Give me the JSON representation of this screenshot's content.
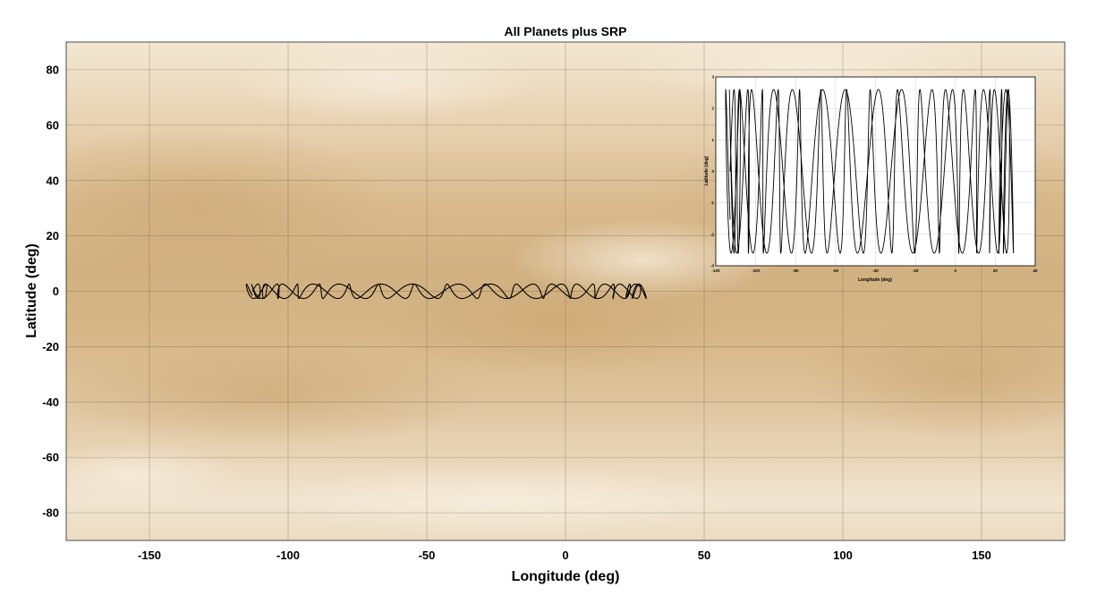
{
  "chart_data": [
    {
      "type": "line",
      "title": "All Planets plus SRP",
      "xlabel": "Longitude (deg)",
      "ylabel": "Latitude (deg)",
      "xlim": [
        -180,
        180
      ],
      "ylim": [
        -90,
        90
      ],
      "xticks": [
        -150,
        -100,
        -50,
        0,
        50,
        100,
        150
      ],
      "yticks": [
        -80,
        -60,
        -40,
        -20,
        0,
        20,
        40,
        60,
        80
      ],
      "grid": true,
      "background": "Venus cloud-top albedo map (tan/beige)",
      "series": [
        {
          "lon_start": -115,
          "lon_end": 29,
          "lat_amplitude": 2.6,
          "color": "#000000"
        }
      ]
    },
    {
      "type": "line",
      "title": "",
      "xlabel": "Longitude (deg)",
      "ylabel": "Latitude (deg)",
      "xlim": [
        -120,
        40
      ],
      "ylim": [
        -3,
        3
      ],
      "xticks": [
        -120,
        -100,
        -80,
        -60,
        -40,
        -20,
        0,
        20,
        40
      ],
      "yticks": [
        -3,
        -2,
        -1,
        0,
        1,
        2,
        3
      ],
      "grid": true,
      "legend": "none",
      "series": [
        {
          "lon_start": -115,
          "lon_end": 29,
          "lat_amplitude": 2.6,
          "color": "#000000"
        }
      ]
    }
  ]
}
